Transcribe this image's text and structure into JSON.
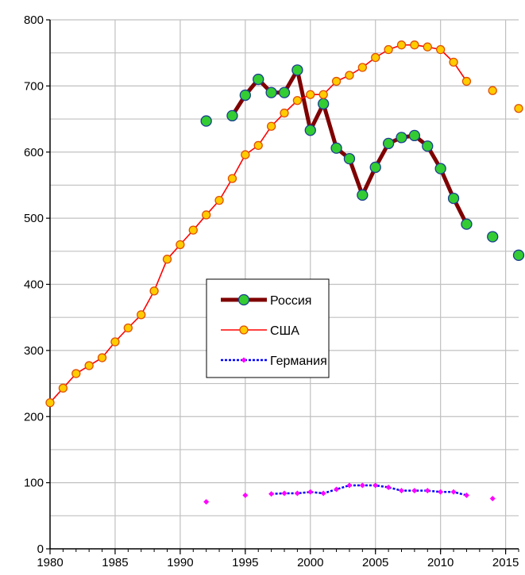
{
  "chart_data": {
    "type": "line",
    "title": "",
    "xlabel": "",
    "ylabel": "",
    "xlim": [
      1980,
      2016
    ],
    "ylim": [
      0,
      800
    ],
    "x_ticks": [
      1980,
      1985,
      1990,
      1995,
      2000,
      2005,
      2010,
      2015
    ],
    "y_ticks": [
      0,
      100,
      200,
      300,
      400,
      500,
      600,
      700,
      800
    ],
    "grid": true,
    "legend_position": "center",
    "series": [
      {
        "name": "Россия",
        "color": "#7f0000",
        "marker_color": "#33cc33",
        "points": [
          [
            1992,
            647
          ],
          [
            1994,
            655
          ],
          [
            1995,
            686
          ],
          [
            1996,
            710
          ],
          [
            1997,
            690
          ],
          [
            1998,
            690
          ],
          [
            1999,
            724
          ],
          [
            2000,
            633
          ],
          [
            2001,
            673
          ],
          [
            2002,
            606
          ],
          [
            2003,
            590
          ],
          [
            2004,
            535
          ],
          [
            2005,
            577
          ],
          [
            2006,
            613
          ],
          [
            2007,
            622
          ],
          [
            2008,
            625
          ],
          [
            2009,
            609
          ],
          [
            2010,
            575
          ],
          [
            2011,
            530
          ],
          [
            2012,
            491
          ],
          [
            2014,
            472
          ],
          [
            2016,
            444
          ]
        ]
      },
      {
        "name": "США",
        "color": "#ff0000",
        "marker_color": "#ffcc00",
        "points": [
          [
            1980,
            221
          ],
          [
            1981,
            243
          ],
          [
            1982,
            265
          ],
          [
            1983,
            277
          ],
          [
            1984,
            289
          ],
          [
            1985,
            313
          ],
          [
            1986,
            334
          ],
          [
            1987,
            354
          ],
          [
            1988,
            390
          ],
          [
            1989,
            438
          ],
          [
            1990,
            460
          ],
          [
            1991,
            482
          ],
          [
            1992,
            505
          ],
          [
            1993,
            527
          ],
          [
            1994,
            560
          ],
          [
            1995,
            596
          ],
          [
            1996,
            610
          ],
          [
            1997,
            639
          ],
          [
            1998,
            659
          ],
          [
            1999,
            678
          ],
          [
            2000,
            687
          ],
          [
            2001,
            687
          ],
          [
            2002,
            707
          ],
          [
            2003,
            716
          ],
          [
            2004,
            728
          ],
          [
            2005,
            743
          ],
          [
            2006,
            755
          ],
          [
            2007,
            762
          ],
          [
            2008,
            762
          ],
          [
            2009,
            759
          ],
          [
            2010,
            755
          ],
          [
            2011,
            736
          ],
          [
            2012,
            707
          ],
          [
            2014,
            693
          ],
          [
            2016,
            666
          ]
        ]
      },
      {
        "name": "Германия",
        "color": "#0000ff",
        "marker_color": "#ff00ff",
        "points": [
          [
            1992,
            71
          ],
          [
            1995,
            81
          ],
          [
            1997,
            83
          ],
          [
            1998,
            84
          ],
          [
            1999,
            84
          ],
          [
            2000,
            86
          ],
          [
            2001,
            84
          ],
          [
            2002,
            90
          ],
          [
            2003,
            96
          ],
          [
            2004,
            96
          ],
          [
            2005,
            96
          ],
          [
            2006,
            93
          ],
          [
            2007,
            88
          ],
          [
            2008,
            88
          ],
          [
            2009,
            88
          ],
          [
            2010,
            86
          ],
          [
            2011,
            86
          ],
          [
            2012,
            81
          ],
          [
            2014,
            76
          ]
        ]
      }
    ]
  }
}
